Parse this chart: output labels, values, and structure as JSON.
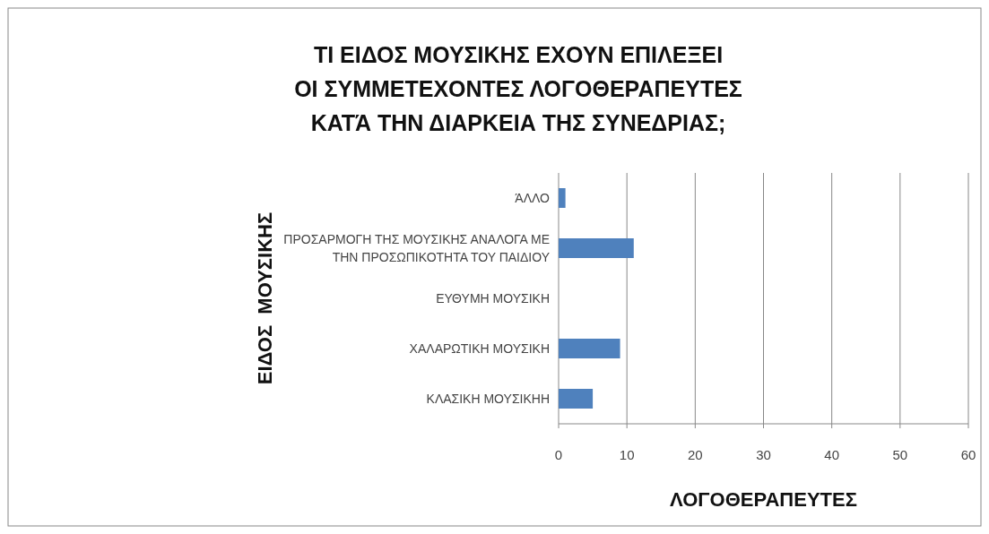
{
  "chart_data": {
    "type": "bar",
    "orientation": "horizontal",
    "title": "ΤΙ ΕΙΔΟΣ ΜΟΥΣΙΚΗΣ ΕΧΟΥΝ ΕΠΙΛΕΞΕΙ ΟΙ ΣΥΜΜΕΤΕΧΟΝΤΕΣ ΛΟΓΟΘΕΡΑΠΕΥΤΕΣ ΚΑΤΆ ΤΗΝ ΔΙΑΡΚΕΙΑ ΤΗΣ ΣΥΝΕΔΡΙΑΣ;",
    "xlabel": "ΛΟΓΟΘΕΡΑΠΕΥΤΕΣ",
    "ylabel": "ΕΙΔΟΣ  ΜΟΥΣΙΚΗΣ",
    "categories": [
      "ΆΛΛΟ",
      "ΠΡΟΣΑΡΜΟΓΗ ΤΗΣ ΜΟΥΣΙΚΗΣ ΑΝΑΛΟΓΑ ΜΕ ΤΗΝ ΠΡΟΣΩΠΙΚΟΤΗΤΑ ΤΟΥ ΠΑΙΔΙΟΥ",
      "ΕΥΘΥΜΗ ΜΟΥΣΙΚΗ",
      "ΧΑΛΑΡΩΤΙΚΗ ΜΟΥΣΙΚΗ",
      "ΚΛΑΣΙΚΗ ΜΟΥΣΙΚΗΗ"
    ],
    "values": [
      1,
      11,
      0,
      9,
      5
    ],
    "color": "#4f81bd",
    "xlim": [
      0,
      60
    ],
    "xticks": [
      0,
      10,
      20,
      30,
      40,
      50,
      60
    ],
    "grid": "x"
  }
}
